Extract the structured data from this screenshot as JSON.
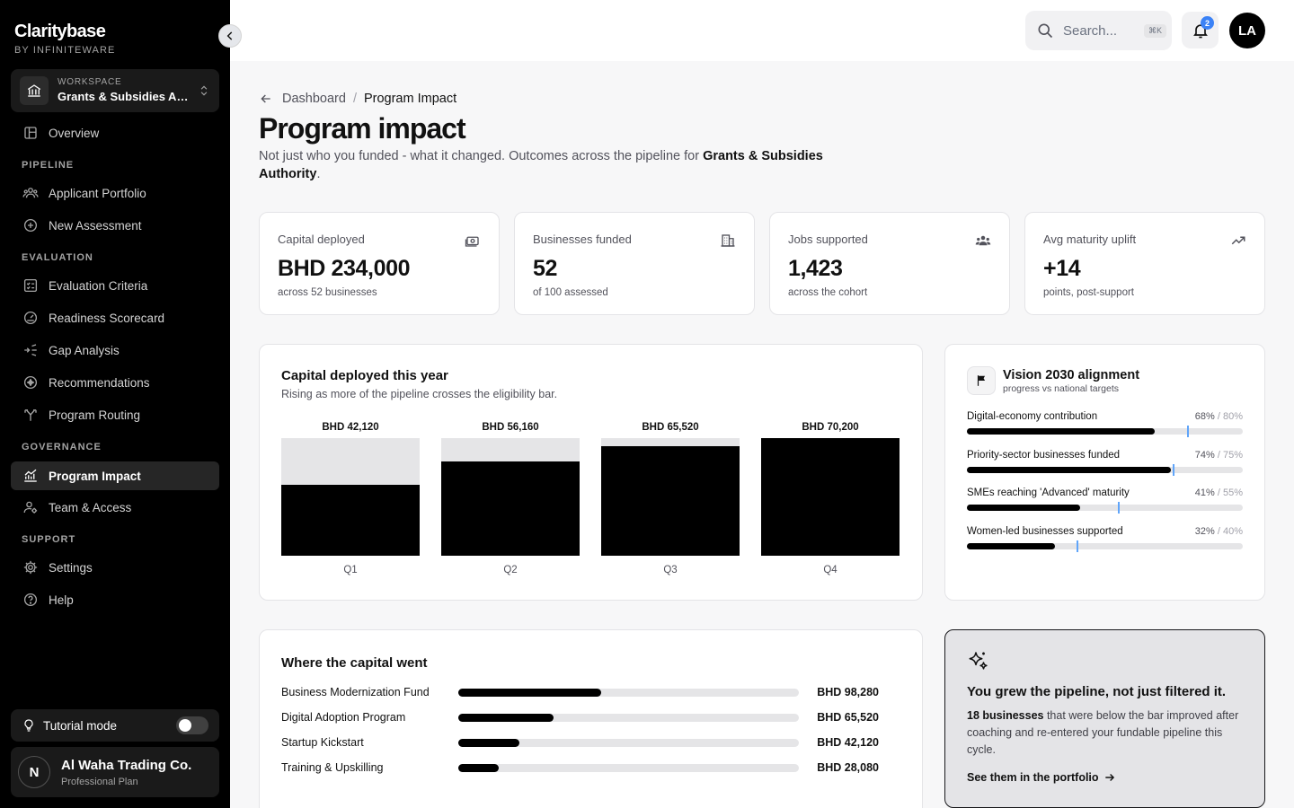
{
  "brand": {
    "name": "Claritybase",
    "byline": "BY INFINITEWARE"
  },
  "workspace": {
    "label": "WORKSPACE",
    "name": "Grants & Subsidies Authority"
  },
  "nav": {
    "overview": "Overview",
    "sections": {
      "pipeline": "PIPELINE",
      "evaluation": "EVALUATION",
      "governance": "GOVERNANCE",
      "support": "SUPPORT"
    },
    "items": {
      "applicant_portfolio": "Applicant Portfolio",
      "new_assessment": "New Assessment",
      "evaluation_criteria": "Evaluation Criteria",
      "readiness_scorecard": "Readiness Scorecard",
      "gap_analysis": "Gap Analysis",
      "recommendations": "Recommendations",
      "program_routing": "Program Routing",
      "program_impact": "Program Impact",
      "team_access": "Team & Access",
      "settings": "Settings",
      "help": "Help"
    },
    "active": "program_impact"
  },
  "tutorial": {
    "label": "Tutorial mode",
    "enabled": false
  },
  "account": {
    "initial": "N",
    "name": "Al Waha Trading Co.",
    "plan": "Professional Plan"
  },
  "topbar": {
    "search_placeholder": "Search...",
    "search_shortcut": "⌘K",
    "notifications": "2",
    "user_initials": "LA"
  },
  "breadcrumb": {
    "parent": "Dashboard",
    "separator": "/",
    "current": "Program Impact"
  },
  "page": {
    "title": "Program impact",
    "description_prefix": "Not just who you funded - what it changed. Outcomes across the pipeline for ",
    "description_org": "Grants & Subsidies Authority",
    "description_suffix": "."
  },
  "stats": [
    {
      "label": "Capital deployed",
      "value": "BHD 234,000",
      "sub": "across 52 businesses",
      "icon": "cash-icon"
    },
    {
      "label": "Businesses funded",
      "value": "52",
      "sub": "of 100 assessed",
      "icon": "building-icon"
    },
    {
      "label": "Jobs supported",
      "value": "1,423",
      "sub": "across the cohort",
      "icon": "people-icon"
    },
    {
      "label": "Avg maturity uplift",
      "value": "+14",
      "sub": "points, post-support",
      "icon": "trending-up-icon"
    }
  ],
  "capital_chart": {
    "title": "Capital deployed this year",
    "subtitle": "Rising as more of the pipeline crosses the eligibility bar."
  },
  "chart_data": {
    "type": "bar",
    "title": "Capital deployed this year",
    "categories": [
      "Q1",
      "Q2",
      "Q3",
      "Q4"
    ],
    "values": [
      42120,
      56160,
      65520,
      70200
    ],
    "value_labels": [
      "BHD 42,120",
      "BHD 56,160",
      "BHD 65,520",
      "BHD 70,200"
    ],
    "ylim": [
      0,
      70200
    ],
    "colors": {
      "bar": "#000000",
      "track": "#e5e5e7"
    }
  },
  "vision": {
    "title": "Vision 2030 alignment",
    "subtitle": "progress vs national targets",
    "rows": [
      {
        "label": "Digital-economy contribution",
        "value": 68,
        "target": 80,
        "value_text": "68%",
        "target_text": " / 80%"
      },
      {
        "label": "Priority-sector businesses funded",
        "value": 74,
        "target": 75,
        "value_text": "74%",
        "target_text": " / 75%"
      },
      {
        "label": "SMEs reaching 'Advanced' maturity",
        "value": 41,
        "target": 55,
        "value_text": "41%",
        "target_text": " / 55%"
      },
      {
        "label": "Women-led businesses supported",
        "value": 32,
        "target": 40,
        "value_text": "32%",
        "target_text": " / 40%"
      }
    ],
    "target_color": "#60a5fa"
  },
  "capital_split": {
    "title": "Where the capital went",
    "max": 234000,
    "rows": [
      {
        "name": "Business Modernization Fund",
        "value": 98280,
        "value_text": "BHD 98,280"
      },
      {
        "name": "Digital Adoption Program",
        "value": 65520,
        "value_text": "BHD 65,520"
      },
      {
        "name": "Startup Kickstart",
        "value": 42120,
        "value_text": "BHD 42,120"
      },
      {
        "name": "Training & Upskilling",
        "value": 28080,
        "value_text": "BHD 28,080"
      }
    ]
  },
  "insight": {
    "title": "You grew the pipeline, not just filtered it.",
    "body_bold": "18 businesses",
    "body_rest": " that were below the bar improved after coaching and re-entered your fundable pipeline this cycle.",
    "link": "See them in the portfolio"
  }
}
